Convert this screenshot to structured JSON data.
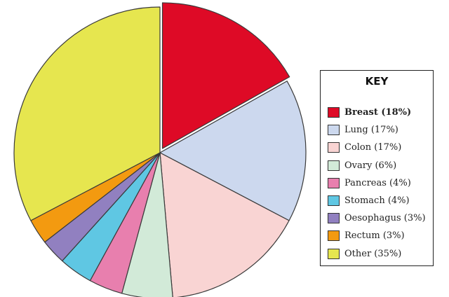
{
  "chart_data": {
    "type": "pie",
    "title": "",
    "legend_title": "KEY",
    "legend_position": "right",
    "slices": [
      {
        "label": "Breast",
        "value": 18,
        "legend": "Breast (18%)",
        "color": "#de0a26",
        "exploded": true,
        "bold": true
      },
      {
        "label": "Lung",
        "value": 17,
        "legend": "Lung (17%)",
        "color": "#ccd8ee"
      },
      {
        "label": "Colon",
        "value": 17,
        "legend": "Colon (17%)",
        "color": "#f9d4d3"
      },
      {
        "label": "Ovary",
        "value": 6,
        "legend": "Ovary (6%)",
        "color": "#d2ead8"
      },
      {
        "label": "Pancreas",
        "value": 4,
        "legend": "Pancreas (4%)",
        "color": "#e87fae"
      },
      {
        "label": "Stomach",
        "value": 4,
        "legend": "Stomach (4%)",
        "color": "#5fc7e3"
      },
      {
        "label": "Oesophagus",
        "value": 3,
        "legend": "Oesophagus (3%)",
        "color": "#9180c0"
      },
      {
        "label": "Rectum",
        "value": 3,
        "legend": "Rectum (3%)",
        "color": "#f39a10"
      },
      {
        "label": "Other",
        "value": 35,
        "legend": "Other (35%)",
        "color": "#e6e64f"
      }
    ]
  }
}
